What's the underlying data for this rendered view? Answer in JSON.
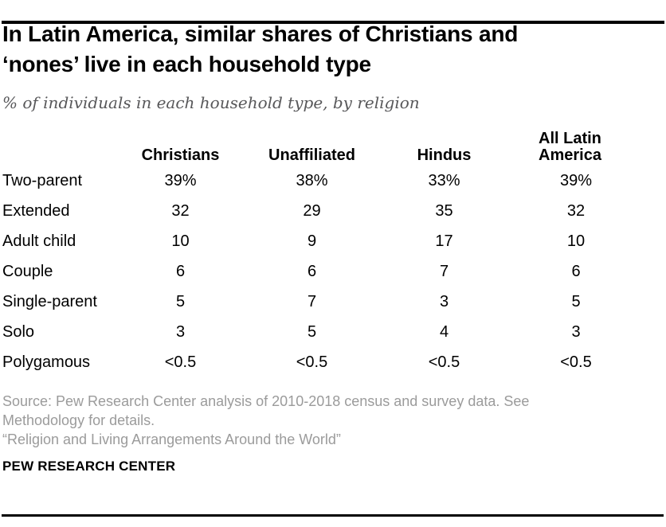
{
  "header": {
    "title_lines": [
      "In Latin America, similar shares of Christians and",
      "‘nones’ live in each household type"
    ],
    "subtitle": "% of individuals in each household type, by religion"
  },
  "chart_data": {
    "type": "table",
    "title": "In Latin America, similar shares of Christians and ‘nones’ live in each household type",
    "subtitle": "% of individuals in each household type, by religion",
    "categories": [
      "Two-parent",
      "Extended",
      "Adult child",
      "Couple",
      "Single-parent",
      "Solo",
      "Polygamous"
    ],
    "series": [
      {
        "name": "Christians",
        "values": [
          "39%",
          "32",
          "10",
          "6",
          "5",
          "3",
          "<0.5"
        ]
      },
      {
        "name": "Unaffiliated",
        "values": [
          "38%",
          "29",
          "9",
          "6",
          "7",
          "5",
          "<0.5"
        ]
      },
      {
        "name": "Hindus",
        "values": [
          "33%",
          "35",
          "17",
          "7",
          "3",
          "4",
          "<0.5"
        ]
      },
      {
        "name": "All Latin America",
        "values": [
          "39%",
          "32",
          "10",
          "6",
          "5",
          "3",
          "<0.5"
        ]
      }
    ],
    "value_unit": "% of individuals",
    "legend_position": "none",
    "grid": false
  },
  "footer": {
    "source_lines": [
      "Source: Pew Research Center analysis of 2010-2018 census and survey data. See",
      "Methodology for details."
    ],
    "report_title": "“Religion and Living Arrangements Around the World”",
    "brand": "PEW RESEARCH CENTER"
  },
  "colors": {
    "ink": "#000000",
    "subtitle_gray": "#58585a",
    "note_gray": "#9b9b9b",
    "rule_black": "#000000"
  }
}
